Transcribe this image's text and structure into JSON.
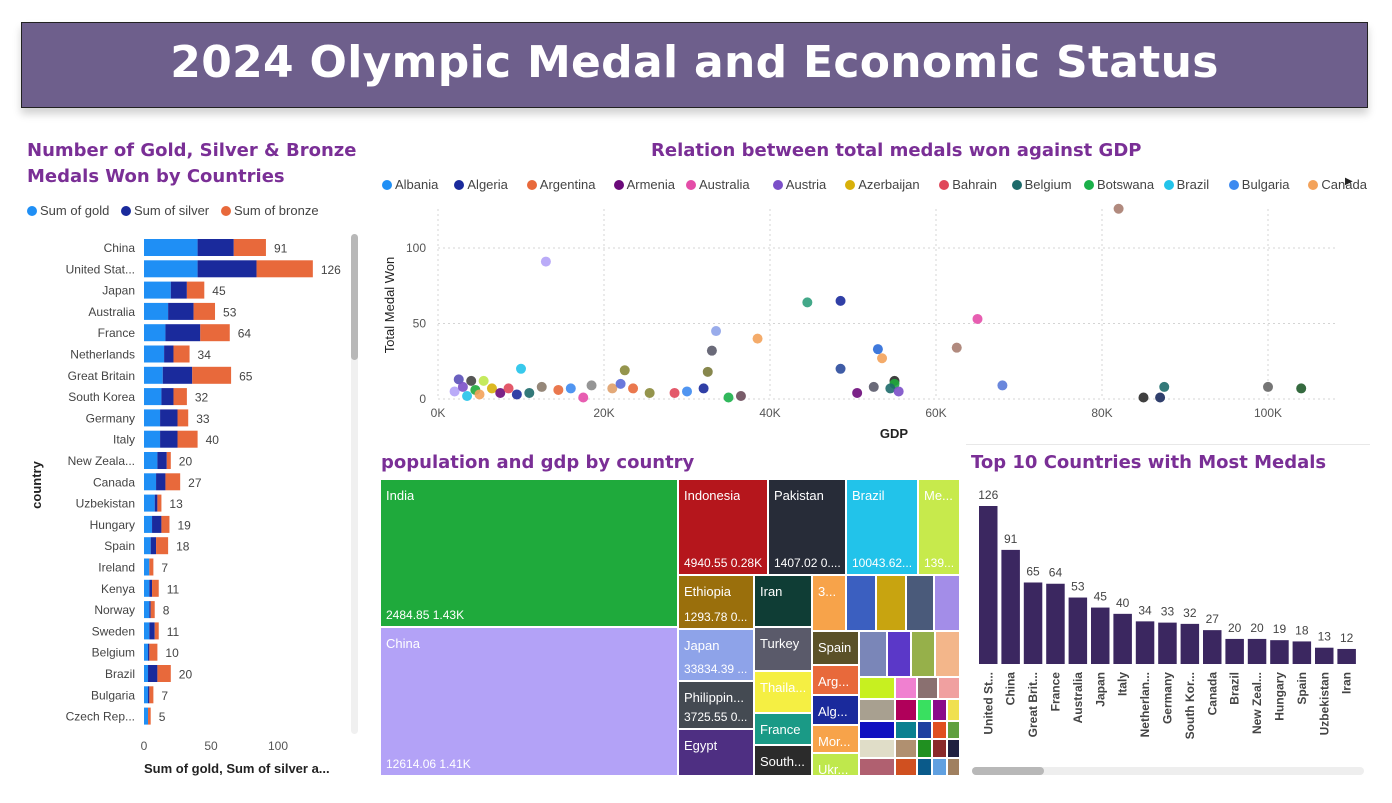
{
  "page_title": "2024 Olympic Medal and Economic Status",
  "colors": {
    "gold": "#1f8ff5",
    "silver": "#1a2a9c",
    "bronze": "#e8693b",
    "bar_purple": "#3b2760",
    "title_purple": "#7a2f96",
    "banner": "#6e5f8c"
  },
  "medal_chart": {
    "title_line1": "Number of Gold, Silver & Bronze",
    "title_line2": "Medals Won by Countries",
    "legend": [
      "Sum of gold",
      "Sum of silver",
      "Sum of bronze"
    ],
    "ylabel": "country",
    "xlabel": "Sum of gold, Sum of silver a...",
    "more_icon": "chevron-right-icon"
  },
  "scatter_chart": {
    "title": "Relation between total medals won against GDP",
    "legend": [
      {
        "name": "Albania",
        "color": "#1f8ff5"
      },
      {
        "name": "Algeria",
        "color": "#1a2a9c"
      },
      {
        "name": "Argentina",
        "color": "#e8693b"
      },
      {
        "name": "Armenia",
        "color": "#6b0a7a"
      },
      {
        "name": "Australia",
        "color": "#e44da8"
      },
      {
        "name": "Austria",
        "color": "#7b4fc8"
      },
      {
        "name": "Azerbaijan",
        "color": "#d8b00a"
      },
      {
        "name": "Bahrain",
        "color": "#e0475a"
      },
      {
        "name": "Belgium",
        "color": "#1d6a6a"
      },
      {
        "name": "Botswana",
        "color": "#1bb04a"
      },
      {
        "name": "Brazil",
        "color": "#22c3ea"
      },
      {
        "name": "Bulgaria",
        "color": "#3d8af0"
      },
      {
        "name": "Canada",
        "color": "#f3a25a"
      }
    ],
    "xlabel": "GDP",
    "ylabel": "Total Medal Won"
  },
  "treemap": {
    "title": "population and gdp by country",
    "cells": [
      {
        "name": "India",
        "value": "2484.85 1.43K",
        "color": "#1faa3c"
      },
      {
        "name": "China",
        "value": "12614.06 1.41K",
        "color": "#b3a2f7"
      },
      {
        "name": "Indonesia",
        "value": "4940.55 0.28K",
        "color": "#b5161c"
      },
      {
        "name": "Pakistan",
        "value": "1407.02 0....",
        "color": "#272c38"
      },
      {
        "name": "Brazil",
        "value": "10043.62...",
        "color": "#22c3ea"
      },
      {
        "name": "Me...",
        "value": "139...",
        "color": "#c7ea4c"
      },
      {
        "name": "Ethiopia",
        "value": "1293.78 0...",
        "color": "#9a6f0c"
      },
      {
        "name": "Iran",
        "value": "",
        "color": "#0f3d35"
      },
      {
        "name": "Japan",
        "value": "33834.39 ...",
        "color": "#8ea3e9"
      },
      {
        "name": "Philippin...",
        "value": "3725.55 0...",
        "color": "#444a52"
      },
      {
        "name": "Egypt",
        "value": "",
        "color": "#4e2f82"
      },
      {
        "name": "Turkey",
        "value": "",
        "color": "#5a5a6a"
      },
      {
        "name": "Thaila...",
        "value": "",
        "color": "#f5ef43"
      },
      {
        "name": "France",
        "value": "",
        "color": "#1a9a86"
      },
      {
        "name": "South...",
        "value": "",
        "color": "#2b2b2b"
      },
      {
        "name": "Spain",
        "value": "",
        "color": "#5b5128"
      },
      {
        "name": "Arg...",
        "value": "",
        "color": "#e8693b"
      },
      {
        "name": "Alg...",
        "value": "",
        "color": "#1a2a9c"
      },
      {
        "name": "Mor...",
        "value": "",
        "color": "#f7a34a"
      },
      {
        "name": "Ukr...",
        "value": "",
        "color": "#bfe84c"
      },
      {
        "name": "3...",
        "value": "",
        "color": "#f7a34a"
      }
    ]
  },
  "top10_chart": {
    "title": "Top 10 Countries with Most Medals"
  },
  "chart_data": [
    {
      "type": "bar",
      "orientation": "horizontal",
      "stacked": true,
      "title": "Number of Gold, Silver & Bronze Medals Won by Countries",
      "xlabel": "Sum of gold, Sum of silver a...",
      "ylabel": "country",
      "xlim": [
        0,
        150
      ],
      "xticks": [
        0,
        50,
        100
      ],
      "legend_position": "top-left",
      "categories": [
        "China",
        "United Stat...",
        "Japan",
        "Australia",
        "France",
        "Netherlands",
        "Great Britain",
        "South Korea",
        "Germany",
        "Italy",
        "New Zeala...",
        "Canada",
        "Uzbekistan",
        "Hungary",
        "Spain",
        "Ireland",
        "Kenya",
        "Norway",
        "Sweden",
        "Belgium",
        "Brazil",
        "Bulgaria",
        "Czech Rep..."
      ],
      "series": [
        {
          "name": "Sum of gold",
          "values": [
            40,
            40,
            20,
            18,
            16,
            15,
            14,
            13,
            12,
            12,
            10,
            9,
            8,
            6,
            5,
            4,
            4,
            4,
            4,
            3,
            3,
            3,
            3
          ]
        },
        {
          "name": "Sum of silver",
          "values": [
            27,
            44,
            12,
            19,
            26,
            7,
            22,
            9,
            13,
            13,
            7,
            7,
            2,
            7,
            4,
            0,
            2,
            1,
            4,
            1,
            7,
            1,
            0
          ]
        },
        {
          "name": "Sum of bronze",
          "values": [
            24,
            42,
            13,
            16,
            22,
            12,
            29,
            10,
            8,
            15,
            3,
            11,
            3,
            6,
            9,
            3,
            5,
            3,
            3,
            6,
            10,
            3,
            2
          ]
        }
      ],
      "totals": [
        91,
        126,
        45,
        53,
        64,
        34,
        65,
        32,
        33,
        40,
        20,
        27,
        13,
        19,
        18,
        7,
        11,
        8,
        11,
        10,
        20,
        7,
        5
      ]
    },
    {
      "type": "scatter",
      "title": "Relation between total medals won against GDP",
      "xlabel": "GDP",
      "ylabel": "Total Medal Won",
      "xlim": [
        0,
        105000
      ],
      "ylim": [
        0,
        126
      ],
      "xticks": [
        "0K",
        "20K",
        "40K",
        "60K",
        "80K",
        "100K"
      ],
      "yticks": [
        0,
        50,
        100
      ],
      "grid": true,
      "points": [
        {
          "x": 13000,
          "y": 91,
          "color": "#b3a2f7"
        },
        {
          "x": 82000,
          "y": 126,
          "color": "#a87d70"
        },
        {
          "x": 48500,
          "y": 65,
          "color": "#1a2a9c"
        },
        {
          "x": 44500,
          "y": 64,
          "color": "#2f9e7c"
        },
        {
          "x": 65000,
          "y": 53,
          "color": "#e44da8"
        },
        {
          "x": 33500,
          "y": 45,
          "color": "#8ea3e9"
        },
        {
          "x": 38500,
          "y": 40,
          "color": "#f3a25a"
        },
        {
          "x": 62500,
          "y": 34,
          "color": "#a87d70"
        },
        {
          "x": 53000,
          "y": 33,
          "color": "#2a6ad8"
        },
        {
          "x": 33000,
          "y": 32,
          "color": "#5a5a6a"
        },
        {
          "x": 53500,
          "y": 27,
          "color": "#f3a25a"
        },
        {
          "x": 10000,
          "y": 20,
          "color": "#22c3ea"
        },
        {
          "x": 48500,
          "y": 20,
          "color": "#2a4a9c"
        },
        {
          "x": 22500,
          "y": 19,
          "color": "#8a8a3a"
        },
        {
          "x": 32500,
          "y": 18,
          "color": "#7a7a3a"
        },
        {
          "x": 4000,
          "y": 12,
          "color": "#444"
        },
        {
          "x": 5500,
          "y": 12,
          "color": "#bfe84c"
        },
        {
          "x": 2500,
          "y": 13,
          "color": "#5a4fb8"
        },
        {
          "x": 55000,
          "y": 12,
          "color": "#2a2a2a"
        },
        {
          "x": 68000,
          "y": 9,
          "color": "#5a7ad8"
        },
        {
          "x": 55000,
          "y": 10,
          "color": "#1faa3c"
        },
        {
          "x": 54500,
          "y": 7,
          "color": "#1d6a6a"
        },
        {
          "x": 55500,
          "y": 5,
          "color": "#7b4fc8"
        },
        {
          "x": 52500,
          "y": 8,
          "color": "#5a5a6a"
        },
        {
          "x": 50500,
          "y": 4,
          "color": "#6b0a7a"
        },
        {
          "x": 87500,
          "y": 8,
          "color": "#1d6a6a"
        },
        {
          "x": 100000,
          "y": 8,
          "color": "#666"
        },
        {
          "x": 104000,
          "y": 7,
          "color": "#1f5a2a"
        },
        {
          "x": 85000,
          "y": 1,
          "color": "#2b2b2b"
        },
        {
          "x": 87000,
          "y": 1,
          "color": "#1a2a5c"
        },
        {
          "x": 2000,
          "y": 5,
          "color": "#b3a2f7"
        },
        {
          "x": 3000,
          "y": 8,
          "color": "#7b4fc8"
        },
        {
          "x": 4500,
          "y": 6,
          "color": "#1faa3c"
        },
        {
          "x": 6500,
          "y": 7,
          "color": "#d8b00a"
        },
        {
          "x": 7500,
          "y": 4,
          "color": "#6b0a7a"
        },
        {
          "x": 8500,
          "y": 7,
          "color": "#e0475a"
        },
        {
          "x": 9500,
          "y": 3,
          "color": "#1a2a9c"
        },
        {
          "x": 11000,
          "y": 4,
          "color": "#1d6a6a"
        },
        {
          "x": 12500,
          "y": 8,
          "color": "#8a7a6a"
        },
        {
          "x": 14500,
          "y": 6,
          "color": "#e8693b"
        },
        {
          "x": 16000,
          "y": 7,
          "color": "#3d8af0"
        },
        {
          "x": 18500,
          "y": 9,
          "color": "#8a8a8a"
        },
        {
          "x": 21000,
          "y": 7,
          "color": "#e0a06a"
        },
        {
          "x": 22000,
          "y": 10,
          "color": "#5a6ad8"
        },
        {
          "x": 25500,
          "y": 4,
          "color": "#8a8a3a"
        },
        {
          "x": 28500,
          "y": 4,
          "color": "#e0475a"
        },
        {
          "x": 30000,
          "y": 5,
          "color": "#3d8af0"
        },
        {
          "x": 32000,
          "y": 7,
          "color": "#1a2a9c"
        },
        {
          "x": 35000,
          "y": 1,
          "color": "#1bb04a"
        },
        {
          "x": 36500,
          "y": 2,
          "color": "#6a4a5a"
        },
        {
          "x": 3500,
          "y": 2,
          "color": "#22c3ea"
        },
        {
          "x": 5000,
          "y": 3,
          "color": "#f3a25a"
        },
        {
          "x": 17500,
          "y": 1,
          "color": "#e44da8"
        },
        {
          "x": 23500,
          "y": 7,
          "color": "#e8693b"
        }
      ]
    },
    {
      "type": "treemap",
      "title": "population and gdp by country",
      "labels": [
        "India",
        "China",
        "Indonesia",
        "Pakistan",
        "Brazil",
        "Me...",
        "Ethiopia",
        "Iran",
        "Japan",
        "Philippin...",
        "Egypt",
        "Turkey",
        "Thaila...",
        "France",
        "South...",
        "Spain",
        "Arg...",
        "Alg...",
        "Mor...",
        "Ukr...",
        "3..."
      ],
      "values": [
        "2484.85 1.43K",
        "12614.06 1.41K",
        "4940.55 0.28K",
        "1407.02 0....",
        "10043.62...",
        "139...",
        "1293.78 0...",
        "",
        "33834.39 ...",
        "3725.55 0...",
        "",
        "",
        "",
        "",
        "",
        "",
        "",
        "",
        "",
        "",
        ""
      ]
    },
    {
      "type": "bar",
      "orientation": "vertical",
      "title": "Top 10 Countries with Most Medals",
      "categories": [
        "United St...",
        "China",
        "Great Brit...",
        "France",
        "Australia",
        "Japan",
        "Italy",
        "Netherlan...",
        "Germany",
        "South Kor...",
        "Canada",
        "Brazil",
        "New Zeal...",
        "Hungary",
        "Spain",
        "Uzbekistan",
        "Iran"
      ],
      "values": [
        126,
        91,
        65,
        64,
        53,
        45,
        40,
        34,
        33,
        32,
        27,
        20,
        20,
        19,
        18,
        13,
        12
      ],
      "ylim": [
        0,
        140
      ]
    }
  ]
}
